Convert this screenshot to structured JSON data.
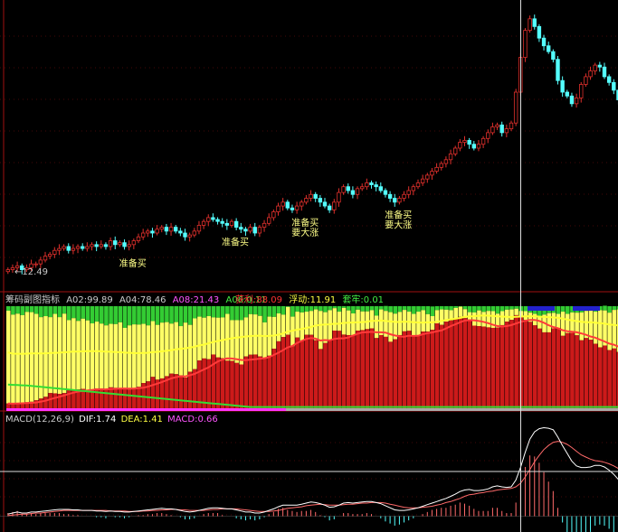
{
  "colors": {
    "background": "#000000",
    "up_candle": "#e0302c",
    "down_candle": "#54ffff",
    "grid": "#8a1010",
    "profit_bar": "#cc1a1a",
    "float_bar": "#ffff66",
    "trap_bar": "#33cc33",
    "slow_line": "#ffff33",
    "fast_line": "#ff3a3a",
    "low_line": "#33dd33",
    "macd_white": "#ffffff",
    "macd_red": "#ff6a6a",
    "macd_cyan": "#54ffff"
  },
  "price_panel": {
    "low_label": "12.49",
    "signals": [
      {
        "bar": 25,
        "lines": [
          "准备买"
        ]
      },
      {
        "bar": 47,
        "lines": [
          "准备买"
        ]
      },
      {
        "bar": 62,
        "lines": [
          "准备买",
          "要大涨"
        ]
      },
      {
        "bar": 82,
        "lines": [
          "准备买",
          "要大涨"
        ]
      }
    ]
  },
  "indicator_panel": {
    "title": "筹码副图指标",
    "a02_label": "A02:",
    "a02_value": "99.89",
    "a04_label": "A04:",
    "a04_value": "78.46",
    "a08_label": "A08:",
    "a08_value": "21.43",
    "a06_label": "A06:",
    "a06_value": "0.11",
    "profit_label": "获利:",
    "profit_value": "88.09",
    "float_label": "浮动:",
    "float_value": "11.91",
    "trap_label": "套牢:",
    "trap_value": "0.01"
  },
  "macd_panel": {
    "title": "MACD(12,26,9)",
    "dif_label": "DIF:",
    "dif_value": "1.74",
    "dea_label": "DEA:",
    "dea_value": "1.41",
    "macd_label": "MACD:",
    "macd_value": "0.66"
  },
  "chart_data": [
    {
      "type": "candlestick",
      "title": "",
      "series": [
        {
          "close": [
            12.6,
            12.7,
            12.8,
            12.6,
            12.7,
            12.9,
            12.9,
            13.1,
            13.3,
            13.4,
            13.6,
            13.7,
            13.8,
            13.6,
            13.7,
            13.8,
            13.7,
            13.8,
            13.9,
            13.8,
            13.9,
            13.8,
            14.1,
            13.9,
            14.0,
            13.8,
            13.9,
            14.1,
            14.3,
            14.5,
            14.6,
            14.5,
            14.7,
            14.8,
            14.6,
            14.8,
            14.6,
            14.5,
            14.3,
            14.4,
            14.6,
            14.9,
            15.1,
            15.3,
            15.2,
            15.1,
            15.0,
            14.9,
            15.1,
            14.8,
            14.7,
            14.6,
            14.8,
            14.5,
            14.8,
            15.0,
            15.3,
            15.6,
            15.9,
            16.1,
            15.8,
            15.7,
            15.9,
            16.1,
            16.3,
            16.5,
            16.3,
            16.1,
            15.9,
            15.7,
            16.1,
            16.6,
            16.9,
            16.7,
            16.5,
            16.8,
            16.9,
            17.1,
            17.0,
            16.9,
            16.7,
            16.5,
            16.3,
            16.1,
            16.3,
            16.5,
            16.7,
            16.9,
            17.1,
            17.3,
            17.5,
            17.7,
            17.9,
            18.1,
            18.3,
            18.6,
            18.9,
            19.2,
            19.3,
            19.1,
            18.9,
            19.1,
            19.4,
            19.7,
            20.0,
            20.1,
            19.7,
            19.9,
            20.2,
            21.8,
            23.6,
            25.0,
            25.6,
            25.2,
            24.6,
            24.2,
            23.9,
            23.5,
            22.4,
            21.8,
            21.6,
            21.2,
            21.5,
            22.2,
            22.6,
            22.9,
            23.2,
            23.1,
            22.6,
            22.3,
            21.9,
            21.4,
            20.8,
            21.0
          ]
        }
      ],
      "ylim": [
        12.3,
        26.2
      ],
      "ytick_labels": [
        "12.49"
      ]
    },
    {
      "type": "bar",
      "title": "筹码副图指标",
      "series": [
        {
          "name": "获利",
          "values": [
            1.9,
            1.8,
            2.1,
            2.2,
            2.4,
            2.6,
            3.2,
            3.9,
            4.6,
            6.1,
            6.0,
            5.8,
            6.1,
            7.7,
            7.4,
            7.6,
            7.8,
            7.4,
            7.2,
            7.9,
            7.9,
            7.6,
            8.4,
            8.2,
            8.1,
            7.6,
            7.5,
            7.9,
            8.6,
            10.1,
            10.8,
            12.6,
            11.5,
            12.0,
            12.9,
            13.9,
            13.7,
            13.2,
            12.3,
            14.7,
            15.7,
            19.2,
            20.0,
            19.7,
            21.6,
            20.4,
            20.1,
            19.1,
            19.0,
            18.2,
            17.6,
            20.8,
            21.5,
            21.6,
            20.8,
            20.1,
            21.1,
            23.9,
            26.9,
            28.6,
            29.5,
            24.9,
            28.4,
            27.0,
            29.5,
            29.5,
            27.3,
            23.8,
            26.2,
            27.5,
            31.2,
            31.1,
            29.6,
            29.4,
            29.4,
            31.2,
            31.4,
            31.8,
            32.1,
            28.2,
            29.4,
            28.7,
            26.7,
            27.7,
            29.4,
            30.9,
            31.1,
            28.9,
            29.1,
            30.8,
            30.8,
            31.5,
            34.1,
            33.5,
            34.8,
            35.3,
            35.9,
            36.7,
            36.2,
            35.2,
            33.2,
            33.0,
            32.8,
            32.5,
            32.3,
            32.4,
            33.4,
            34.8,
            35.5,
            37.4,
            37.1,
            35.5,
            34.7,
            33.3,
            32.0,
            30.5,
            30.5,
            32.1,
            32.3,
            29.1,
            30.2,
            30.3,
            29.3,
            27.3,
            28.2,
            27.5,
            25.9,
            24.5,
            25.2,
            23.4,
            24.0,
            22.6,
            22.4,
            23.0
          ]
        },
        {
          "name": "浮动",
          "values": [
            37.3,
            35.8,
            35.9,
            35.2,
            36.3,
            36.0,
            34.7,
            32.7,
            32.4,
            30.5,
            31.9,
            30.8,
            31.9,
            27.7,
            28.8,
            27.5,
            28.2,
            27.9,
            26.9,
            26.9,
            26.1,
            25.7,
            25.5,
            25.6,
            26.4,
            24.7,
            25.8,
            25.8,
            25.0,
            23.8,
            22.5,
            22.4,
            22.0,
            22.4,
            21.7,
            20.1,
            20.9,
            19.8,
            22.1,
            18.8,
            20.4,
            17.6,
            16.4,
            17.3,
            14.9,
            16.0,
            16.4,
            18.8,
            16.4,
            17.2,
            17.8,
            15.7,
            16.3,
            16.1,
            16.3,
            14.4,
            15.7,
            12.8,
            11.2,
            9.0,
            11.2,
            11.9,
            10.4,
            11.5,
            9.3,
            9.6,
            12.4,
            15.3,
            12.4,
            11.9,
            9.0,
            7.7,
            10.7,
            9.9,
            8.7,
            8.4,
            7.5,
            7.1,
            7.3,
            9.0,
            10.3,
            10.4,
            11.9,
            10.3,
            9.3,
            8.6,
            7.7,
            9.0,
            9.7,
            8.6,
            7.0,
            5.5,
            5.3,
            6.2,
            4.8,
            4.1,
            4.4,
            4.1,
            3.6,
            3.4,
            5.3,
            6.3,
            5.9,
            6.6,
            6.7,
            5.6,
            5.6,
            4.8,
            4.2,
            2.6,
            2.0,
            3.5,
            3.7,
            4.6,
            5.0,
            7.1,
            7.7,
            6.2,
            5.6,
            9.7,
            7.7,
            8.2,
            9.1,
            11.2,
            10.9,
            12.3,
            12.9,
            14.9,
            14.1,
            15.0,
            15.5,
            17.1,
            16.9,
            16.5
          ]
        },
        {
          "name": "套牢",
          "values": [
            1.8,
            3.4,
            3.0,
            3.6,
            2.3,
            2.4,
            3.1,
            4.4,
            4.0,
            4.4,
            3.1,
            4.4,
            3.0,
            5.6,
            4.8,
            5.9,
            5.0,
            5.7,
            6.9,
            6.2,
            7.0,
            7.7,
            7.1,
            7.2,
            6.5,
            8.7,
            7.7,
            7.3,
            7.4,
            7.1,
            7.7,
            6.0,
            7.5,
            6.6,
            6.4,
            7.0,
            6.4,
            8.0,
            6.6,
            7.5,
            4.9,
            4.2,
            4.6,
            4.0,
            4.5,
            4.6,
            4.5,
            3.1,
            5.6,
            5.6,
            5.6,
            4.5,
            3.2,
            3.3,
            3.9,
            6.5,
            4.2,
            4.3,
            2.9,
            3.4,
            0.3,
            4.2,
            2.2,
            2.5,
            2.2,
            1.9,
            1.3,
            1.9,
            2.4,
            1.6,
            0.8,
            2.2,
            0.7,
            1.7,
            2.9,
            1.4,
            2.1,
            2.1,
            1.6,
            3.8,
            1.3,
            2.0,
            2.4,
            3.0,
            2.3,
            1.5,
            2.2,
            3.1,
            2.2,
            1.6,
            3.2,
            3.9,
            1.6,
            1.3,
            1.4,
            1.6,
            0.7,
            0.2,
            1.2,
            2.4,
            2.5,
            1.7,
            2.3,
            1.9,
            2.0,
            3.0,
            2.0,
            1.4,
            1.3,
            1.0,
            1.9,
            2.0,
            2.6,
            3.1,
            4.0,
            3.4,
            2.8,
            2.7,
            3.1,
            2.2,
            3.1,
            2.5,
            2.6,
            2.5,
            1.9,
            1.2,
            2.2,
            1.6,
            1.9,
            2.6,
            1.5,
            1.3,
            1.7,
            1.5
          ]
        }
      ],
      "ylim": [
        0,
        41
      ]
    },
    {
      "type": "line",
      "title": "MACD(12,26,9)",
      "series": [
        {
          "name": "DIF",
          "values": [
            0.04,
            0.06,
            0.08,
            0.06,
            0.06,
            0.08,
            0.08,
            0.09,
            0.1,
            0.11,
            0.12,
            0.13,
            0.13,
            0.13,
            0.12,
            0.12,
            0.11,
            0.11,
            0.11,
            0.1,
            0.1,
            0.09,
            0.1,
            0.09,
            0.09,
            0.08,
            0.08,
            0.09,
            0.1,
            0.11,
            0.12,
            0.13,
            0.14,
            0.15,
            0.14,
            0.14,
            0.13,
            0.11,
            0.09,
            0.08,
            0.09,
            0.11,
            0.13,
            0.15,
            0.16,
            0.16,
            0.15,
            0.14,
            0.14,
            0.12,
            0.1,
            0.08,
            0.08,
            0.06,
            0.06,
            0.08,
            0.11,
            0.14,
            0.18,
            0.21,
            0.21,
            0.21,
            0.21,
            0.23,
            0.25,
            0.27,
            0.26,
            0.24,
            0.21,
            0.17,
            0.18,
            0.21,
            0.25,
            0.26,
            0.25,
            0.26,
            0.27,
            0.28,
            0.28,
            0.26,
            0.24,
            0.2,
            0.16,
            0.12,
            0.11,
            0.11,
            0.12,
            0.14,
            0.16,
            0.19,
            0.22,
            0.25,
            0.28,
            0.31,
            0.34,
            0.38,
            0.42,
            0.47,
            0.5,
            0.51,
            0.49,
            0.49,
            0.5,
            0.52,
            0.56,
            0.58,
            0.56,
            0.55,
            0.56,
            0.69,
            0.93,
            1.22,
            1.47,
            1.61,
            1.67,
            1.69,
            1.68,
            1.65,
            1.51,
            1.35,
            1.2,
            1.05,
            0.96,
            0.93,
            0.93,
            0.94,
            0.97,
            0.97,
            0.94,
            0.88,
            0.8,
            0.7,
            0.58,
            0.49
          ]
        },
        {
          "name": "DEA",
          "values": [
            0.01,
            0.02,
            0.03,
            0.04,
            0.04,
            0.05,
            0.06,
            0.06,
            0.07,
            0.08,
            0.09,
            0.1,
            0.11,
            0.11,
            0.11,
            0.11,
            0.11,
            0.11,
            0.11,
            0.11,
            0.11,
            0.11,
            0.1,
            0.1,
            0.1,
            0.1,
            0.09,
            0.09,
            0.09,
            0.1,
            0.1,
            0.11,
            0.11,
            0.12,
            0.12,
            0.13,
            0.13,
            0.12,
            0.12,
            0.11,
            0.11,
            0.11,
            0.11,
            0.12,
            0.13,
            0.13,
            0.14,
            0.14,
            0.14,
            0.14,
            0.13,
            0.12,
            0.11,
            0.1,
            0.09,
            0.09,
            0.09,
            0.1,
            0.11,
            0.13,
            0.15,
            0.16,
            0.17,
            0.18,
            0.2,
            0.21,
            0.22,
            0.23,
            0.22,
            0.21,
            0.21,
            0.21,
            0.22,
            0.23,
            0.23,
            0.24,
            0.25,
            0.25,
            0.26,
            0.26,
            0.26,
            0.25,
            0.23,
            0.21,
            0.19,
            0.17,
            0.16,
            0.16,
            0.16,
            0.17,
            0.18,
            0.19,
            0.21,
            0.23,
            0.26,
            0.28,
            0.31,
            0.34,
            0.38,
            0.41,
            0.42,
            0.44,
            0.45,
            0.47,
            0.48,
            0.5,
            0.51,
            0.52,
            0.53,
            0.56,
            0.63,
            0.75,
            0.89,
            1.04,
            1.16,
            1.27,
            1.35,
            1.41,
            1.43,
            1.41,
            1.37,
            1.31,
            1.24,
            1.17,
            1.13,
            1.09,
            1.06,
            1.05,
            1.03,
            1.0,
            0.96,
            0.91,
            0.84,
            0.77
          ]
        }
      ]
    }
  ]
}
